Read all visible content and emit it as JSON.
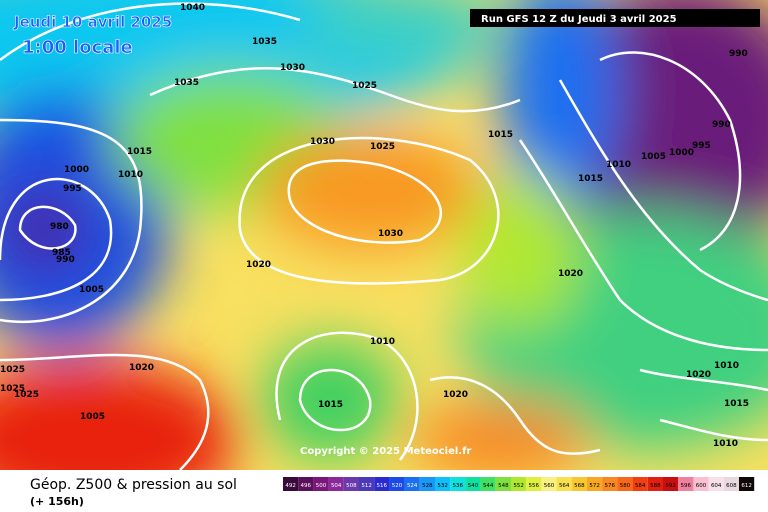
{
  "header": {
    "date": "Jeudi 10 avril 2025",
    "time": "1:00 locale",
    "run": "Run GFS 12 Z du Jeudi 3 avril 2025"
  },
  "copyright": "Copyright © 2025 Meteociel.fr",
  "caption": {
    "title": "Géop. Z500 & pression au sol",
    "lead": "(+ 156h)"
  },
  "isobar_labels": [
    1040,
    1035,
    1030,
    1035,
    1025,
    1030,
    1025,
    1015,
    1010,
    1000,
    995,
    980,
    985,
    990,
    1005,
    1020,
    1030,
    1015,
    1010,
    1005,
    1000,
    995,
    990,
    990,
    1015,
    1020,
    1010,
    1020,
    1025,
    1025,
    1025,
    1005,
    1015,
    1020,
    1020,
    1010,
    1015,
    1010
  ],
  "scale": {
    "values": [
      492,
      496,
      500,
      504,
      508,
      512,
      516,
      520,
      524,
      528,
      532,
      536,
      540,
      544,
      548,
      552,
      556,
      560,
      564,
      568,
      572,
      576,
      580,
      584,
      588,
      592,
      596,
      600,
      604,
      608,
      612
    ],
    "colors": [
      "#3a0a3a",
      "#5a105a",
      "#7a187a",
      "#8a2a9a",
      "#6a3aaa",
      "#4a3ab8",
      "#2a2ad0",
      "#1a4ae8",
      "#1a70f0",
      "#1a98f8",
      "#10c0f8",
      "#10e0e0",
      "#10e0a0",
      "#40e060",
      "#80e040",
      "#b0e830",
      "#e0f040",
      "#f8f080",
      "#f8e050",
      "#f8c830",
      "#f8a820",
      "#f88820",
      "#f86818",
      "#f04010",
      "#e02010",
      "#c81010",
      "#f080a0",
      "#f8c0d0",
      "#f8e0e8",
      "#e8d8e0",
      "#100808"
    ]
  }
}
